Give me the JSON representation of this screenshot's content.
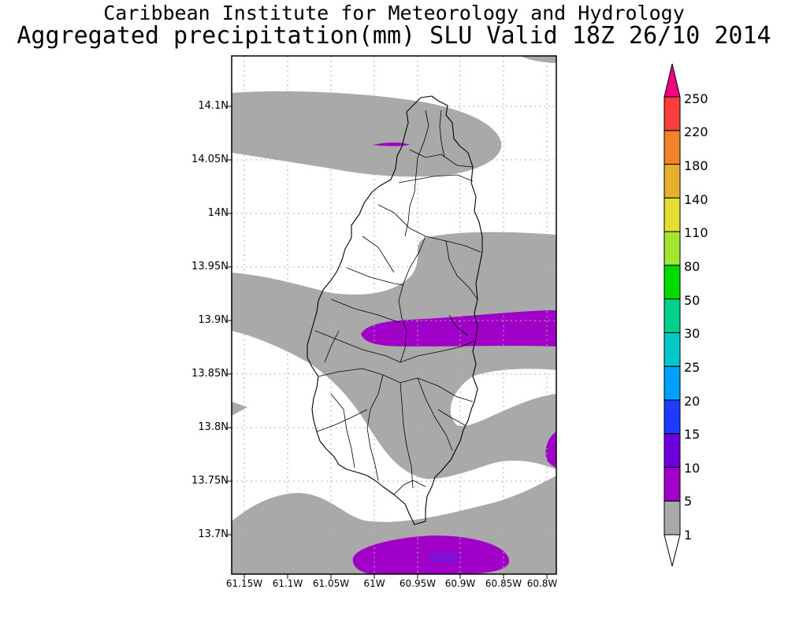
{
  "header": {
    "title_line1": "Caribbean Institute for Meteorology and Hydrology",
    "title_line2": "Aggregated precipitation(mm) SLU Valid 18Z 26/10 2014"
  },
  "map": {
    "region": "Saint Lucia",
    "lat_labels": [
      "14.1N",
      "14.05N",
      "14N",
      "13.95N",
      "13.9N",
      "13.85N",
      "13.8N",
      "13.75N",
      "13.7N"
    ],
    "lon_labels": [
      "61.15W",
      "61.1W",
      "61.05W",
      "61W",
      "60.95W",
      "60.9W",
      "60.85W",
      "60.8W"
    ]
  },
  "legend": {
    "levels": [
      "1",
      "5",
      "10",
      "15",
      "20",
      "25",
      "30",
      "50",
      "80",
      "110",
      "140",
      "180",
      "220",
      "250"
    ],
    "colors": [
      "#ffffff",
      "#a9a9a9",
      "#a000c8",
      "#6e00dc",
      "#1e3cff",
      "#00a0ff",
      "#00c8c8",
      "#00d28c",
      "#00dc00",
      "#a0e632",
      "#e6dc32",
      "#e6af2d",
      "#f08228",
      "#fa3c3c",
      "#f00082"
    ]
  }
}
